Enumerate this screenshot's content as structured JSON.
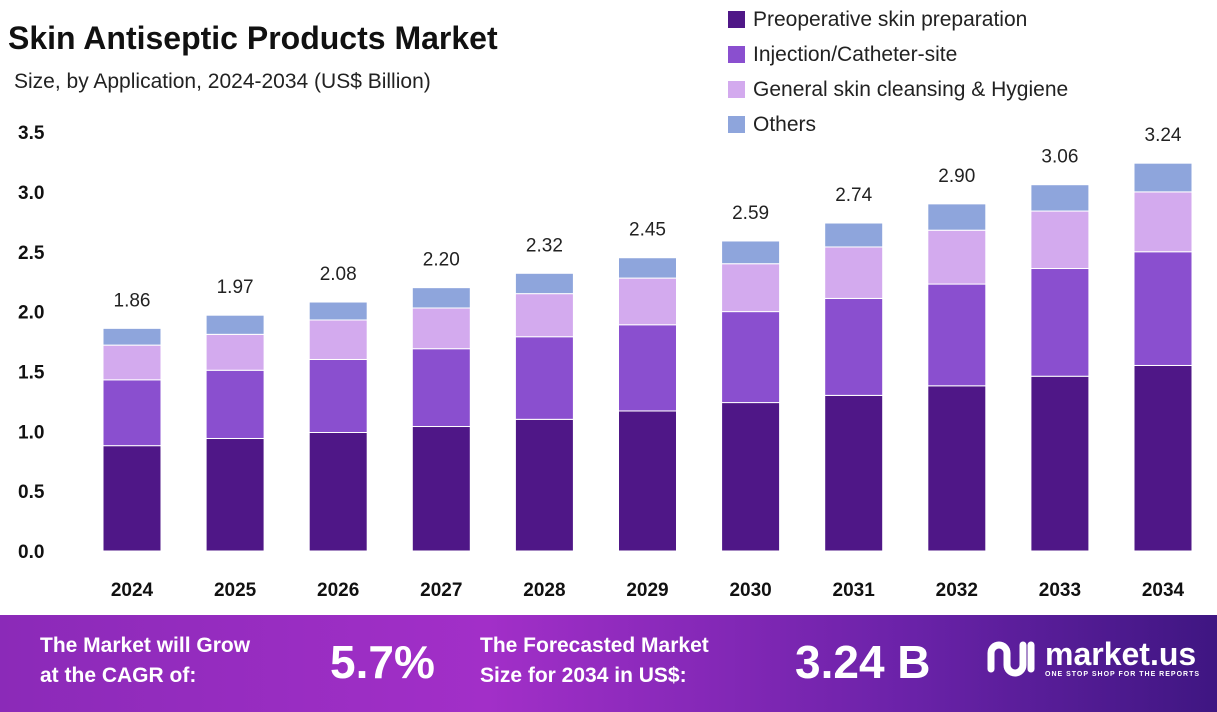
{
  "title": "Skin Antiseptic Products Market",
  "subtitle": "Size, by Application, 2024-2034 (US$ Billion)",
  "chart_data": {
    "type": "bar",
    "stacked": true,
    "title": "Skin Antiseptic Products Market",
    "subtitle": "Size, by Application, 2024-2034 (US$ Billion)",
    "categories": [
      "2024",
      "2025",
      "2026",
      "2027",
      "2028",
      "2029",
      "2030",
      "2031",
      "2032",
      "2033",
      "2034"
    ],
    "series": [
      {
        "name": "Preoperative skin preparation",
        "color": "#4f1787",
        "values": [
          0.88,
          0.94,
          0.99,
          1.04,
          1.1,
          1.17,
          1.24,
          1.3,
          1.38,
          1.46,
          1.55
        ]
      },
      {
        "name": "Injection/Catheter-site",
        "color": "#8a4fcf",
        "values": [
          0.55,
          0.57,
          0.61,
          0.65,
          0.69,
          0.72,
          0.76,
          0.81,
          0.85,
          0.9,
          0.95
        ]
      },
      {
        "name": "General skin cleansing & Hygiene",
        "color": "#d3aaee",
        "values": [
          0.29,
          0.3,
          0.33,
          0.34,
          0.36,
          0.39,
          0.4,
          0.43,
          0.45,
          0.48,
          0.5
        ]
      },
      {
        "name": "Others",
        "color": "#8ea5dc",
        "values": [
          0.14,
          0.16,
          0.15,
          0.17,
          0.17,
          0.17,
          0.19,
          0.2,
          0.22,
          0.22,
          0.24
        ]
      }
    ],
    "totals": [
      "1.86",
      "1.97",
      "2.08",
      "2.20",
      "2.32",
      "2.45",
      "2.59",
      "2.74",
      "2.90",
      "3.06",
      "3.24"
    ],
    "yticks": [
      "0.0",
      "0.5",
      "1.0",
      "1.5",
      "2.0",
      "2.5",
      "3.0",
      "3.5"
    ],
    "ylim": [
      0,
      3.5
    ],
    "grid": false,
    "legend": "top-right"
  },
  "footer": {
    "cagr_label_1": "The Market will Grow",
    "cagr_label_2": "at the CAGR of:",
    "cagr_value": "5.7%",
    "forecast_label_1": "The Forecasted Market",
    "forecast_label_2": "Size for 2034 in US$:",
    "forecast_value": "3.24 B",
    "brand": "market.us",
    "tagline": "ONE STOP SHOP FOR THE REPORTS"
  }
}
